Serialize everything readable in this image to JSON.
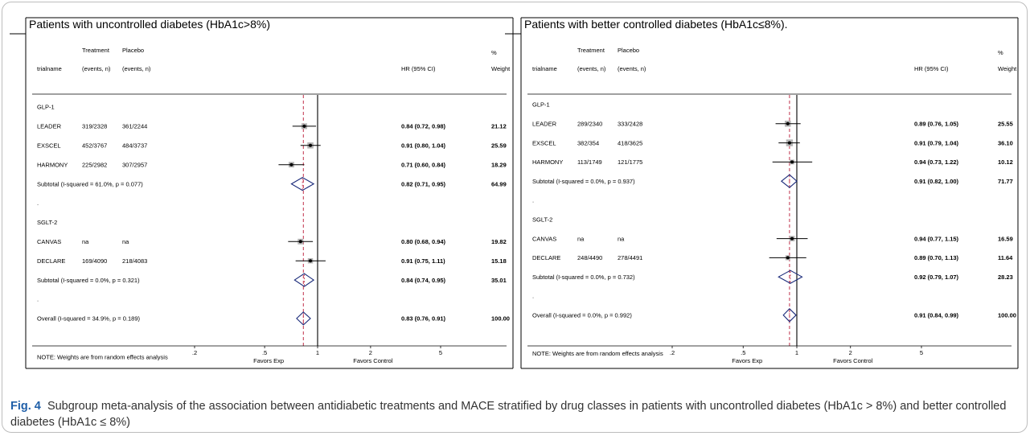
{
  "caption": {
    "label": "Fig. 4",
    "text": "Subgroup meta-analysis of the association between antidiabetic treatments and MACE stratified by drug classes in patients with uncontrolled diabetes (HbA1c > 8%) and better controlled diabetes (HbA1c ≤ 8%)"
  },
  "chart_data": [
    {
      "type": "forest",
      "title": "Patients with uncontrolled diabetes (HbA1c>8%)",
      "x_scale": "log",
      "x_ticks": [
        0.2,
        0.5,
        1,
        2,
        5
      ],
      "x_tick_labels": [
        ".2",
        ".5",
        "1",
        "2",
        "5"
      ],
      "reference_line": 1,
      "overall_line": 0.83,
      "xlabel_left": "Favors Exp",
      "xlabel_right": "Favors Control",
      "columns": {
        "trial": "trialname",
        "treatment": [
          "Treatment",
          "(events, n)"
        ],
        "placebo": [
          "Placebo",
          "(events, n)"
        ],
        "hr": "HR (95% CI)",
        "weight": [
          "%",
          "Weight"
        ]
      },
      "rows": [
        {
          "kind": "group",
          "label": "GLP-1"
        },
        {
          "kind": "study",
          "label": "LEADER",
          "treatment": "319/2328",
          "placebo": "361/2244",
          "hr": 0.84,
          "lo": 0.72,
          "hi": 0.98,
          "hr_text": "0.84 (0.72, 0.98)",
          "weight": 21.12,
          "weight_text": "21.12"
        },
        {
          "kind": "study",
          "label": "EXSCEL",
          "treatment": "452/3767",
          "placebo": "484/3737",
          "hr": 0.91,
          "lo": 0.8,
          "hi": 1.04,
          "hr_text": "0.91 (0.80, 1.04)",
          "weight": 25.59,
          "weight_text": "25.59"
        },
        {
          "kind": "study",
          "label": "HARMONY",
          "treatment": "225/2982",
          "placebo": "307/2957",
          "hr": 0.71,
          "lo": 0.6,
          "hi": 0.84,
          "hr_text": "0.71 (0.60, 0.84)",
          "weight": 18.29,
          "weight_text": "18.29"
        },
        {
          "kind": "subtotal",
          "label": "Subtotal  (I-squared = 61.0%, p = 0.077)",
          "hr": 0.82,
          "lo": 0.71,
          "hi": 0.95,
          "hr_text": "0.82 (0.71, 0.95)",
          "weight_text": "64.99"
        },
        {
          "kind": "dot",
          "label": "."
        },
        {
          "kind": "group",
          "label": "SGLT-2"
        },
        {
          "kind": "study",
          "label": "CANVAS",
          "treatment": "na",
          "placebo": "na",
          "hr": 0.8,
          "lo": 0.68,
          "hi": 0.94,
          "hr_text": "0.80 (0.68, 0.94)",
          "weight": 19.82,
          "weight_text": "19.82"
        },
        {
          "kind": "study",
          "label": "DECLARE",
          "treatment": "169/4090",
          "placebo": "218/4083",
          "hr": 0.91,
          "lo": 0.75,
          "hi": 1.11,
          "hr_text": "0.91 (0.75, 1.11)",
          "weight": 15.18,
          "weight_text": "15.18"
        },
        {
          "kind": "subtotal",
          "label": "Subtotal  (I-squared = 0.0%, p = 0.321)",
          "hr": 0.84,
          "lo": 0.74,
          "hi": 0.95,
          "hr_text": "0.84 (0.74, 0.95)",
          "weight_text": "35.01"
        },
        {
          "kind": "dot",
          "label": "."
        },
        {
          "kind": "overall",
          "label": "Overall  (I-squared = 34.9%, p = 0.189)",
          "hr": 0.83,
          "lo": 0.76,
          "hi": 0.91,
          "hr_text": "0.83 (0.76, 0.91)",
          "weight_text": "100.00"
        },
        {
          "kind": "blank"
        },
        {
          "kind": "note",
          "label": "NOTE: Weights are from random effects analysis"
        }
      ]
    },
    {
      "type": "forest",
      "title": "Patients with better controlled diabetes (HbA1c≤8%).",
      "x_scale": "log",
      "x_ticks": [
        0.2,
        0.5,
        1,
        2,
        5
      ],
      "x_tick_labels": [
        ".2",
        ".5",
        "1",
        "2",
        "5"
      ],
      "reference_line": 1,
      "overall_line": 0.91,
      "xlabel_left": "Favors Exp",
      "xlabel_right": "Favors Control",
      "columns": {
        "trial": "trialname",
        "treatment": [
          "Treatment",
          "(events, n)"
        ],
        "placebo": [
          "Placebo",
          "(events, n)"
        ],
        "hr": "HR (95% CI)",
        "weight": [
          "%",
          "Weight"
        ]
      },
      "rows": [
        {
          "kind": "group",
          "label": "GLP-1"
        },
        {
          "kind": "study",
          "label": "LEADER",
          "treatment": "289/2340",
          "placebo": "333/2428",
          "hr": 0.89,
          "lo": 0.76,
          "hi": 1.05,
          "hr_text": "0.89 (0.76, 1.05)",
          "weight": 25.55,
          "weight_text": "25.55"
        },
        {
          "kind": "study",
          "label": "EXSCEL",
          "treatment": "382/354",
          "placebo": "418/3625",
          "hr": 0.91,
          "lo": 0.79,
          "hi": 1.04,
          "hr_text": "0.91 (0.79, 1.04)",
          "weight": 36.1,
          "weight_text": "36.10"
        },
        {
          "kind": "study",
          "label": "HARMONY",
          "treatment": "113/1749",
          "placebo": "121/1775",
          "hr": 0.94,
          "lo": 0.73,
          "hi": 1.22,
          "hr_text": "0.94 (0.73, 1.22)",
          "weight": 10.12,
          "weight_text": "10.12"
        },
        {
          "kind": "subtotal",
          "label": "Subtotal  (I-squared = 0.0%, p = 0.937)",
          "hr": 0.91,
          "lo": 0.82,
          "hi": 1.0,
          "hr_text": "0.91 (0.82, 1.00)",
          "weight_text": "71.77"
        },
        {
          "kind": "dot",
          "label": "."
        },
        {
          "kind": "group",
          "label": "SGLT-2"
        },
        {
          "kind": "study",
          "label": "CANVAS",
          "treatment": "na",
          "placebo": "na",
          "hr": 0.94,
          "lo": 0.77,
          "hi": 1.15,
          "hr_text": "0.94 (0.77, 1.15)",
          "weight": 16.59,
          "weight_text": "16.59"
        },
        {
          "kind": "study",
          "label": "DECLARE",
          "treatment": "248/4490",
          "placebo": "278/4491",
          "hr": 0.89,
          "lo": 0.7,
          "hi": 1.13,
          "hr_text": "0.89 (0.70, 1.13)",
          "weight": 11.64,
          "weight_text": "11.64"
        },
        {
          "kind": "subtotal",
          "label": "Subtotal  (I-squared = 0.0%, p = 0.732)",
          "hr": 0.92,
          "lo": 0.79,
          "hi": 1.07,
          "hr_text": "0.92 (0.79, 1.07)",
          "weight_text": "28.23"
        },
        {
          "kind": "dot",
          "label": "."
        },
        {
          "kind": "overall",
          "label": "Overall  (I-squared = 0.0%, p = 0.992)",
          "hr": 0.91,
          "lo": 0.84,
          "hi": 0.99,
          "hr_text": "0.91 (0.84, 0.99)",
          "weight_text": "100.00"
        },
        {
          "kind": "blank"
        },
        {
          "kind": "note",
          "label": "NOTE: Weights are from random effects analysis"
        }
      ]
    }
  ]
}
